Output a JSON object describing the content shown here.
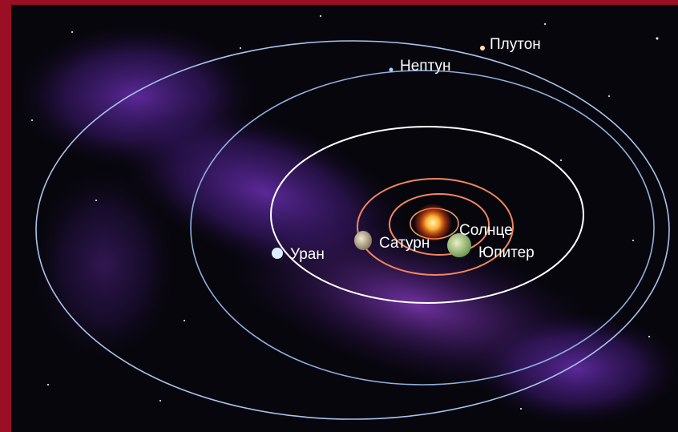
{
  "nodes": [
    {
      "label": "Плутон"
    },
    {
      "label": "Нептун"
    },
    {
      "label": "Уран"
    },
    {
      "label": "Сатурн"
    },
    {
      "label": "Солнце"
    },
    {
      "label": "Юпитер"
    }
  ]
}
